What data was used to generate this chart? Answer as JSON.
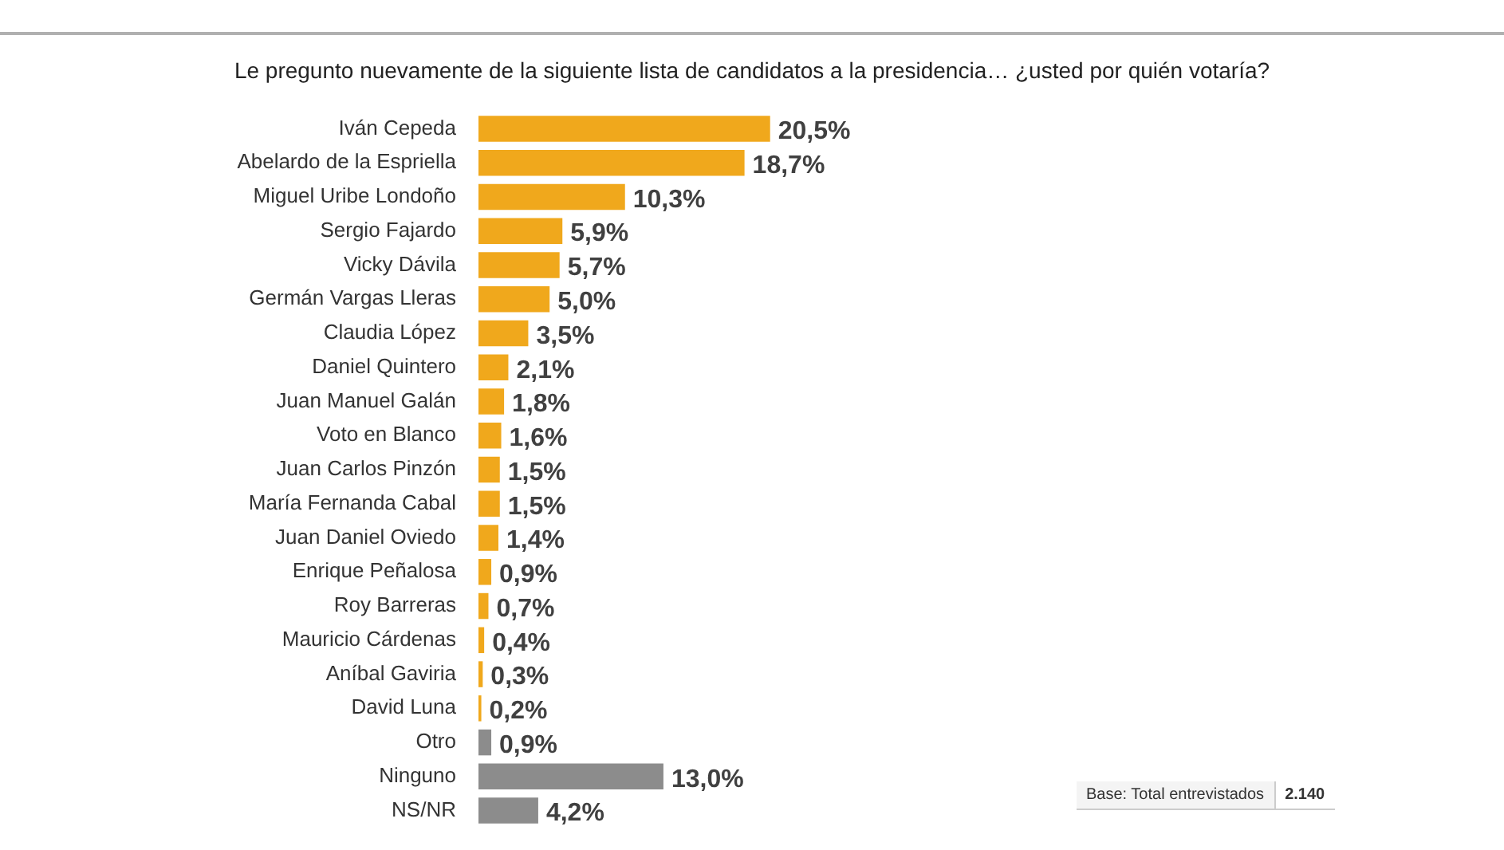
{
  "chart_data": {
    "type": "bar",
    "orientation": "horizontal",
    "title": "Le pregunto nuevamente de la siguiente lista de candidatos a la presidencia… ¿usted por quién votaría?",
    "categories": [
      "Iván Cepeda",
      "Abelardo de la Espriella",
      "Miguel Uribe Londoño",
      "Sergio Fajardo",
      "Vicky Dávila",
      "Germán Vargas Lleras",
      "Claudia López",
      "Daniel Quintero",
      "Juan Manuel Galán",
      "Voto en Blanco",
      "Juan Carlos Pinzón",
      "María Fernanda Cabal",
      "Juan Daniel Oviedo",
      "Enrique Peñalosa",
      "Roy Barreras",
      "Mauricio Cárdenas",
      "Aníbal Gaviria",
      "David Luna",
      "Otro",
      "Ninguno",
      "NS/NR"
    ],
    "values": [
      20.5,
      18.7,
      10.3,
      5.9,
      5.7,
      5.0,
      3.5,
      2.1,
      1.8,
      1.6,
      1.5,
      1.5,
      1.4,
      0.9,
      0.7,
      0.4,
      0.3,
      0.2,
      0.9,
      13.0,
      4.2
    ],
    "value_labels": [
      "20,5%",
      "18,7%",
      "10,3%",
      "5,9%",
      "5,7%",
      "5,0%",
      "3,5%",
      "2,1%",
      "1,8%",
      "1,6%",
      "1,5%",
      "1,5%",
      "1,4%",
      "0,9%",
      "0,7%",
      "0,4%",
      "0,3%",
      "0,2%",
      "0,9%",
      "13,0%",
      "4,2%"
    ],
    "colors": [
      "#f0a81c",
      "#f0a81c",
      "#f0a81c",
      "#f0a81c",
      "#f0a81c",
      "#f0a81c",
      "#f0a81c",
      "#f0a81c",
      "#f0a81c",
      "#f0a81c",
      "#f0a81c",
      "#f0a81c",
      "#f0a81c",
      "#f0a81c",
      "#f0a81c",
      "#f0a81c",
      "#f0a81c",
      "#f0a81c",
      "#8c8c8c",
      "#8c8c8c",
      "#8c8c8c"
    ],
    "tick_labels": "y",
    "annotations": [
      "Base: Total entrevistados",
      "2.140"
    ]
  }
}
